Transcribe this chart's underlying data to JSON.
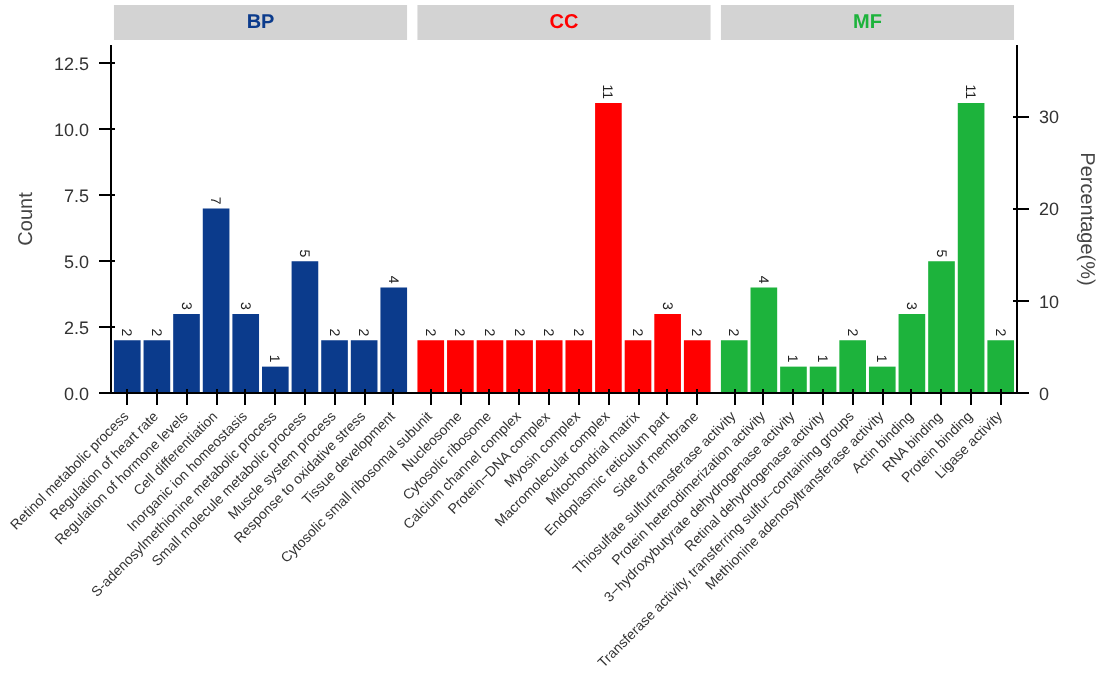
{
  "chart_data": {
    "type": "bar",
    "categories": [
      "Retinol metabolic process",
      "Regulation of heart rate",
      "Regulation of hormone levels",
      "Cell differentiation",
      "Inorganic ion homeostasis",
      "S-adenosylmethionine metabolic process",
      "Small molecule metabolic process",
      "Muscle system process",
      "Response to oxidative stress",
      "Tissue development",
      "Cytosolic small ribosomal subunit",
      "Nucleosome",
      "Cytosolic ribosome",
      "Calcium channel complex",
      "Protein−DNA complex",
      "Myosin complex",
      "Macromolecular complex",
      "Mitochondrial matrix",
      "Endoplasmic reticulum part",
      "Side of membrane",
      "Thiosulfate sulfurtransferase activity",
      "Protein heterodimerization activity",
      "3−hydroxybutyrate dehydrogenase activity",
      "Retinal dehydrogenase activity",
      "Transferase activity, transferring sulfur−containing groups",
      "Methionine adenosyltransferase activity",
      "Actin binding",
      "RNA binding",
      "Protein binding",
      "Ligase activity"
    ],
    "series": [
      {
        "name": "BP",
        "color": "#0b3b8c",
        "values": [
          2,
          2,
          3,
          7,
          3,
          1,
          5,
          2,
          2,
          4,
          null,
          null,
          null,
          null,
          null,
          null,
          null,
          null,
          null,
          null,
          null,
          null,
          null,
          null,
          null,
          null,
          null,
          null,
          null,
          null
        ]
      },
      {
        "name": "CC",
        "color": "#ff0000",
        "values": [
          null,
          null,
          null,
          null,
          null,
          null,
          null,
          null,
          null,
          null,
          2,
          2,
          2,
          2,
          2,
          2,
          11,
          2,
          3,
          2,
          null,
          null,
          null,
          null,
          null,
          null,
          null,
          null,
          null,
          null
        ]
      },
      {
        "name": "MF",
        "color": "#1db33c",
        "values": [
          null,
          null,
          null,
          null,
          null,
          null,
          null,
          null,
          null,
          null,
          null,
          null,
          null,
          null,
          null,
          null,
          null,
          null,
          null,
          null,
          2,
          4,
          1,
          1,
          2,
          1,
          3,
          5,
          11,
          2
        ]
      }
    ],
    "ylabel": "Count",
    "y2label": "Percentage(%)",
    "ylim": [
      0,
      13.2
    ],
    "yticks": [
      {
        "value": 0,
        "label": "0.0"
      },
      {
        "value": 2.5,
        "label": "2.5"
      },
      {
        "value": 5,
        "label": "5.0"
      },
      {
        "value": 7.5,
        "label": "7.5"
      },
      {
        "value": 10,
        "label": "10.0"
      },
      {
        "value": 12.5,
        "label": "12.5"
      }
    ],
    "y2lim": [
      0,
      37.7
    ],
    "y2ticks": [
      0,
      10,
      20,
      30
    ],
    "data_labels": true,
    "grid": false
  }
}
